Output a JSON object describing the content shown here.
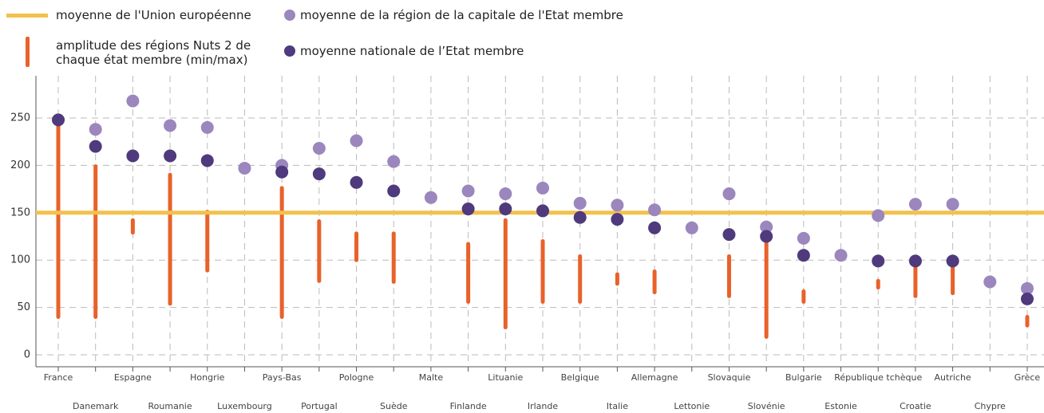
{
  "chart_data": {
    "type": "dot_range",
    "categories": [
      "France",
      "Danemark",
      "Espagne",
      "Roumanie",
      "Hongrie",
      "Luxembourg",
      "Pays-Bas",
      "Portugal",
      "Pologne",
      "Suède",
      "Malte",
      "Finlande",
      "Lituanie",
      "Irlande",
      "Belgique",
      "Italie",
      "Allemagne",
      "Lettonie",
      "Slovaquie",
      "Slovénie",
      "Bulgarie",
      "Estonie",
      "République tchèque",
      "Croatie",
      "Autriche",
      "Chypre",
      "Grèce"
    ],
    "reference": {
      "name": "moyenne de l'Union européenne",
      "color": "#f2c14e",
      "value": 150
    },
    "range": {
      "name": "amplitude des régions Nuts 2 de chaque état membre (min/max)",
      "color": "#e8622a",
      "min": [
        40,
        40,
        129,
        54,
        89,
        null,
        40,
        78,
        100,
        77,
        null,
        56,
        29,
        56,
        56,
        75,
        66,
        null,
        62,
        19,
        56,
        null,
        71,
        62,
        65,
        null,
        31
      ],
      "max": [
        248,
        199,
        142,
        190,
        151,
        null,
        176,
        141,
        128,
        128,
        null,
        117,
        142,
        120,
        104,
        85,
        88,
        null,
        104,
        118,
        67,
        null,
        78,
        93,
        93,
        null,
        40
      ]
    },
    "series": [
      {
        "name": "moyenne de la région de la capitale de l'Etat membre",
        "color": "#9b86bd",
        "values": [
          null,
          238,
          268,
          242,
          240,
          197,
          200,
          218,
          226,
          204,
          166,
          173,
          170,
          176,
          160,
          158,
          153,
          134,
          170,
          135,
          123,
          105,
          147,
          159,
          159,
          77,
          70
        ]
      },
      {
        "name": "moyenne nationale de l’Etat membre",
        "color": "#4e3a7c",
        "values": [
          248,
          220,
          210,
          210,
          205,
          null,
          193,
          191,
          182,
          173,
          null,
          154,
          154,
          152,
          145,
          143,
          134,
          null,
          127,
          125,
          105,
          null,
          99,
          99,
          99,
          null,
          59
        ]
      }
    ],
    "ylim": [
      0,
      280
    ],
    "yticks": [
      0,
      50,
      100,
      150,
      200,
      250
    ],
    "grid": true
  }
}
